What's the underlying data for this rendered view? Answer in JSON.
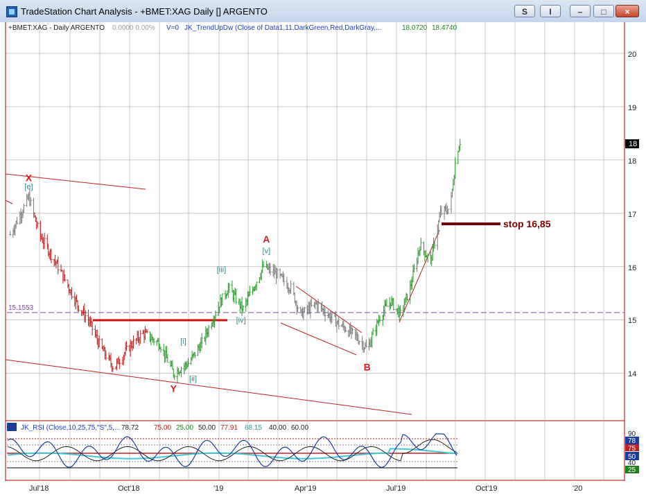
{
  "window": {
    "title": "TradeStation Chart Analysis - +BMET:XAG Daily [] ARGENTO",
    "btn_s": "S",
    "btn_i": "I",
    "btn_min": "–",
    "btn_max": "□",
    "btn_close": "×"
  },
  "header": {
    "symbol": "+BMET:XAG - Daily  ARGENTO",
    "change": "0.0000  0.00%",
    "volume": "V=0",
    "indicator": "JK_TrendUpDw (Close of Data1,11,DarkGreen,Red,DarkGray,...",
    "val1": "18.0720",
    "val2": "18.4740"
  },
  "chart_data": {
    "type": "candlestick",
    "y_ticks": [
      "20",
      "19",
      "18",
      "17",
      "16",
      "15",
      "14"
    ],
    "x_ticks": [
      "Jul'18",
      "Oct'18",
      "'19",
      "Apr'19",
      "Jul'19",
      "Oct'19",
      "'20"
    ],
    "last_price_label": "18",
    "ylim": [
      13.3,
      20.6
    ],
    "support_level": 15.1553,
    "support_label": "15.1553",
    "stop_level": 16.85,
    "stop_label": "stop 16,85",
    "red_line_level": 15.0,
    "wave_labels": [
      {
        "text": "X",
        "color": "#d42020",
        "date": "2018-06-20",
        "price": 17.6
      },
      {
        "text": "[e]",
        "color": "#2a8a8a",
        "date": "2018-06-20",
        "price": 17.45
      },
      {
        "text": "Y",
        "color": "#d42020",
        "date": "2018-11-15",
        "price": 13.65
      },
      {
        "text": "[i]",
        "color": "#2a8a8a",
        "date": "2018-11-25",
        "price": 14.55
      },
      {
        "text": "[ii]",
        "color": "#2a8a8a",
        "date": "2018-12-05",
        "price": 13.85
      },
      {
        "text": "[iii]",
        "color": "#2a8a8a",
        "date": "2019-01-03",
        "price": 15.9
      },
      {
        "text": "[iv]",
        "color": "#2a8a8a",
        "date": "2019-01-23",
        "price": 14.95
      },
      {
        "text": "A",
        "color": "#d42020",
        "date": "2019-02-18",
        "price": 16.45
      },
      {
        "text": "[v]",
        "color": "#2a8a8a",
        "date": "2019-02-18",
        "price": 16.25
      },
      {
        "text": "B",
        "color": "#d42020",
        "date": "2019-06-01",
        "price": 14.05
      }
    ],
    "series": [
      {
        "date": "2018-06-01",
        "price": 16.6
      },
      {
        "date": "2018-06-20",
        "price": 17.3
      },
      {
        "date": "2018-07-01",
        "price": 16.6
      },
      {
        "date": "2018-07-20",
        "price": 16.0
      },
      {
        "date": "2018-08-10",
        "price": 15.25
      },
      {
        "date": "2018-08-20",
        "price": 15.0
      },
      {
        "date": "2018-09-01",
        "price": 14.5
      },
      {
        "date": "2018-09-15",
        "price": 14.1
      },
      {
        "date": "2018-10-01",
        "price": 14.5
      },
      {
        "date": "2018-10-15",
        "price": 14.75
      },
      {
        "date": "2018-11-01",
        "price": 14.55
      },
      {
        "date": "2018-11-15",
        "price": 14.0
      },
      {
        "date": "2018-12-01",
        "price": 14.2
      },
      {
        "date": "2018-12-15",
        "price": 14.6
      },
      {
        "date": "2019-01-01",
        "price": 15.3
      },
      {
        "date": "2019-01-10",
        "price": 15.6
      },
      {
        "date": "2019-01-25",
        "price": 15.2
      },
      {
        "date": "2019-02-15",
        "price": 16.0
      },
      {
        "date": "2019-03-01",
        "price": 15.85
      },
      {
        "date": "2019-03-15",
        "price": 15.6
      },
      {
        "date": "2019-03-25",
        "price": 15.1
      },
      {
        "date": "2019-04-10",
        "price": 15.3
      },
      {
        "date": "2019-05-01",
        "price": 14.95
      },
      {
        "date": "2019-05-20",
        "price": 14.7
      },
      {
        "date": "2019-06-01",
        "price": 14.45
      },
      {
        "date": "2019-06-15",
        "price": 15.1
      },
      {
        "date": "2019-06-25",
        "price": 15.35
      },
      {
        "date": "2019-07-05",
        "price": 15.1
      },
      {
        "date": "2019-07-15",
        "price": 15.6
      },
      {
        "date": "2019-07-25",
        "price": 16.4
      },
      {
        "date": "2019-08-05",
        "price": 16.1
      },
      {
        "date": "2019-08-15",
        "price": 17.0
      },
      {
        "date": "2019-08-25",
        "price": 17.1
      },
      {
        "date": "2019-08-31",
        "price": 18.1
      },
      {
        "date": "2019-09-04",
        "price": 18.35
      }
    ],
    "rsi": {
      "label": "JK_RSI (Close,10,25,75,\"S\",5,...",
      "values_text": [
        "78.72",
        "75.00",
        "25.00",
        "50.00",
        "77.91",
        "68.15",
        "40.00",
        "60.00"
      ],
      "y_ticks": [
        "90",
        "78",
        "75",
        "50",
        "40",
        "25"
      ]
    }
  }
}
